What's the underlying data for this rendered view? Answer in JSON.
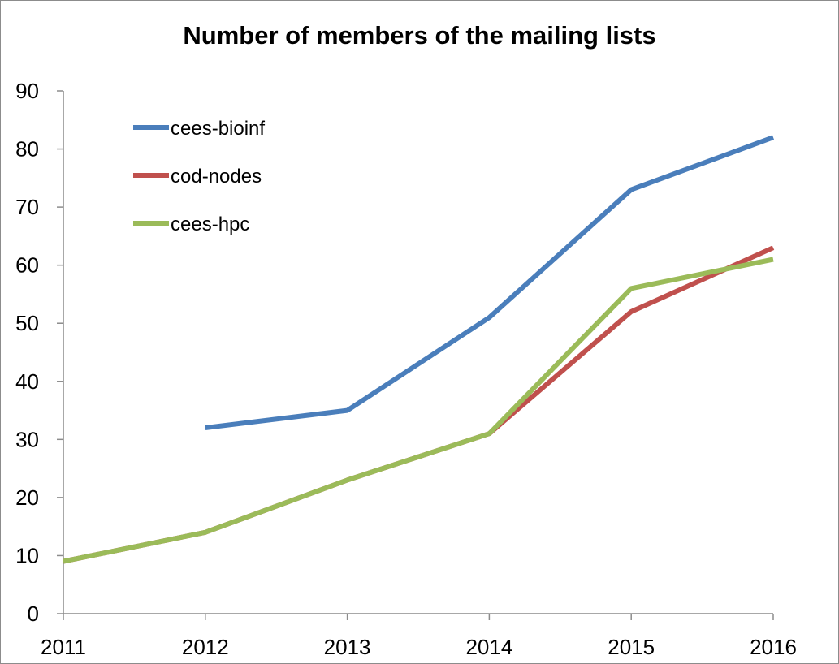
{
  "chart_data": {
    "type": "line",
    "title": "Number of members of the mailing lists",
    "xlabel": "",
    "ylabel": "",
    "x": [
      2011,
      2012,
      2013,
      2014,
      2015,
      2016
    ],
    "ylim": [
      0,
      90
    ],
    "yticks": [
      0,
      10,
      20,
      30,
      40,
      50,
      60,
      70,
      80,
      90
    ],
    "grid": false,
    "legend_position": "top-left",
    "series": [
      {
        "name": "cees-bioinf",
        "color": "#4a7ebb",
        "values": [
          null,
          32,
          35,
          51,
          73,
          82
        ]
      },
      {
        "name": "cod-nodes",
        "color": "#c0504d",
        "values": [
          9,
          14,
          23,
          31,
          52,
          63
        ]
      },
      {
        "name": "cees-hpc",
        "color": "#9bbb59",
        "values": [
          9,
          14,
          23,
          31,
          56,
          61
        ]
      }
    ]
  }
}
